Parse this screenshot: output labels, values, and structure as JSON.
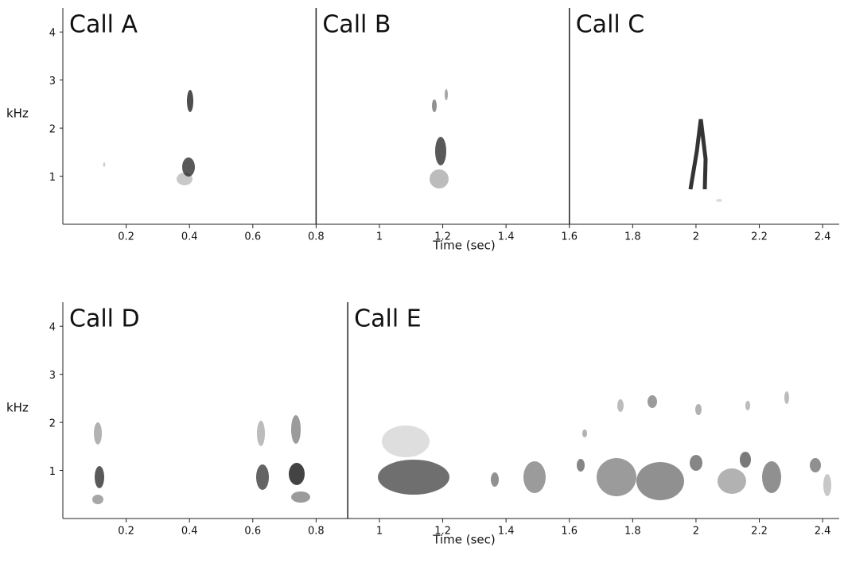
{
  "chart_data": [
    {
      "type": "spectrogram",
      "x_label": "Time (sec)",
      "y_label": "kHz",
      "calls": [
        "Call A",
        "Call B",
        "Call C"
      ],
      "boundaries": [
        0.8,
        1.6
      ],
      "xlim": [
        0,
        2.46
      ],
      "ylim": [
        0,
        4.5
      ],
      "xticks": [
        0.2,
        0.4,
        0.6,
        0.8,
        1,
        1.2,
        1.4,
        1.6,
        1.8,
        2,
        2.2,
        2.4
      ],
      "yticks": [
        1,
        2,
        3,
        4
      ]
    },
    {
      "type": "spectrogram",
      "x_label": "Time (sec)",
      "y_label": "kHz",
      "calls": [
        "Call D",
        "Call E"
      ],
      "boundaries": [
        0.9
      ],
      "xlim": [
        0,
        2.46
      ],
      "ylim": [
        0,
        4.5
      ],
      "xticks": [
        0.2,
        0.4,
        0.6,
        0.8,
        1,
        1.2,
        1.4,
        1.6,
        1.8,
        2,
        2.2,
        2.4
      ],
      "yticks": [
        1,
        2,
        3,
        4
      ]
    }
  ]
}
